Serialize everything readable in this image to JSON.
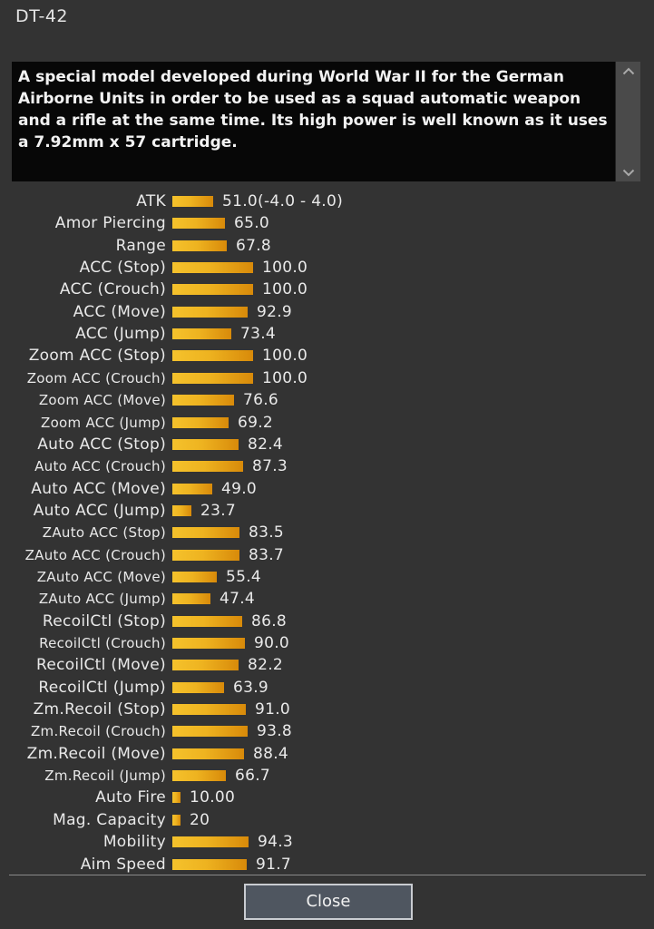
{
  "window": {
    "title": "DT-42"
  },
  "description": {
    "text": "A special model developed during World War II for the German Airborne Units in order to be used as a squad automatic weapon and a rifle at the same time. Its high power is well known as it uses a 7.92mm x 57 cartridge."
  },
  "stats": [
    {
      "label": "ATK",
      "value": "51.0(-4.0 - 4.0)",
      "level": 51.0
    },
    {
      "label": "Amor Piercing",
      "value": "65.0",
      "level": 65.0
    },
    {
      "label": "Range",
      "value": "67.8",
      "level": 67.8
    },
    {
      "label": "ACC (Stop)",
      "value": "100.0",
      "level": 100.0
    },
    {
      "label": "ACC (Crouch)",
      "value": "100.0",
      "level": 100.0
    },
    {
      "label": "ACC (Move)",
      "value": "92.9",
      "level": 92.9
    },
    {
      "label": "ACC (Jump)",
      "value": "73.4",
      "level": 73.4
    },
    {
      "label": "Zoom ACC (Stop)",
      "value": "100.0",
      "level": 100.0
    },
    {
      "label": "Zoom ACC (Crouch)",
      "value": "100.0",
      "level": 100.0
    },
    {
      "label": "Zoom ACC (Move)",
      "value": "76.6",
      "level": 76.6
    },
    {
      "label": "Zoom ACC (Jump)",
      "value": "69.2",
      "level": 69.2
    },
    {
      "label": "Auto ACC (Stop)",
      "value": "82.4",
      "level": 82.4
    },
    {
      "label": "Auto ACC (Crouch)",
      "value": "87.3",
      "level": 87.3
    },
    {
      "label": "Auto ACC (Move)",
      "value": "49.0",
      "level": 49.0
    },
    {
      "label": "Auto ACC (Jump)",
      "value": "23.7",
      "level": 23.7
    },
    {
      "label": "ZAuto ACC (Stop)",
      "value": "83.5",
      "level": 83.5
    },
    {
      "label": "ZAuto ACC (Crouch)",
      "value": "83.7",
      "level": 83.7
    },
    {
      "label": "ZAuto ACC (Move)",
      "value": "55.4",
      "level": 55.4
    },
    {
      "label": "ZAuto ACC (Jump)",
      "value": "47.4",
      "level": 47.4
    },
    {
      "label": "RecoilCtl (Stop)",
      "value": "86.8",
      "level": 86.8
    },
    {
      "label": "RecoilCtl (Crouch)",
      "value": "90.0",
      "level": 90.0
    },
    {
      "label": "RecoilCtl (Move)",
      "value": "82.2",
      "level": 82.2
    },
    {
      "label": "RecoilCtl (Jump)",
      "value": "63.9",
      "level": 63.9
    },
    {
      "label": "Zm.Recoil (Stop)",
      "value": "91.0",
      "level": 91.0
    },
    {
      "label": "Zm.Recoil (Crouch)",
      "value": "93.8",
      "level": 93.8
    },
    {
      "label": "Zm.Recoil (Move)",
      "value": "88.4",
      "level": 88.4
    },
    {
      "label": "Zm.Recoil (Jump)",
      "value": "66.7",
      "level": 66.7
    },
    {
      "label": "Auto Fire",
      "value": "10.00",
      "level": 10.0
    },
    {
      "label": "Mag. Capacity",
      "value": "20",
      "level": 10.0
    },
    {
      "label": "Mobility",
      "value": "94.3",
      "level": 94.3
    },
    {
      "label": "Aim Speed",
      "value": "91.7",
      "level": 91.7
    }
  ],
  "close_button": {
    "label": "Close"
  },
  "colors": {
    "background": "#333333",
    "description_background": "#070707",
    "bar_start": "#f5c22c",
    "bar_end": "#d88a0a",
    "button_background": "#4f5660"
  },
  "icons": {
    "scroll_up": "chevron-up-icon",
    "scroll_down": "chevron-down-icon"
  }
}
